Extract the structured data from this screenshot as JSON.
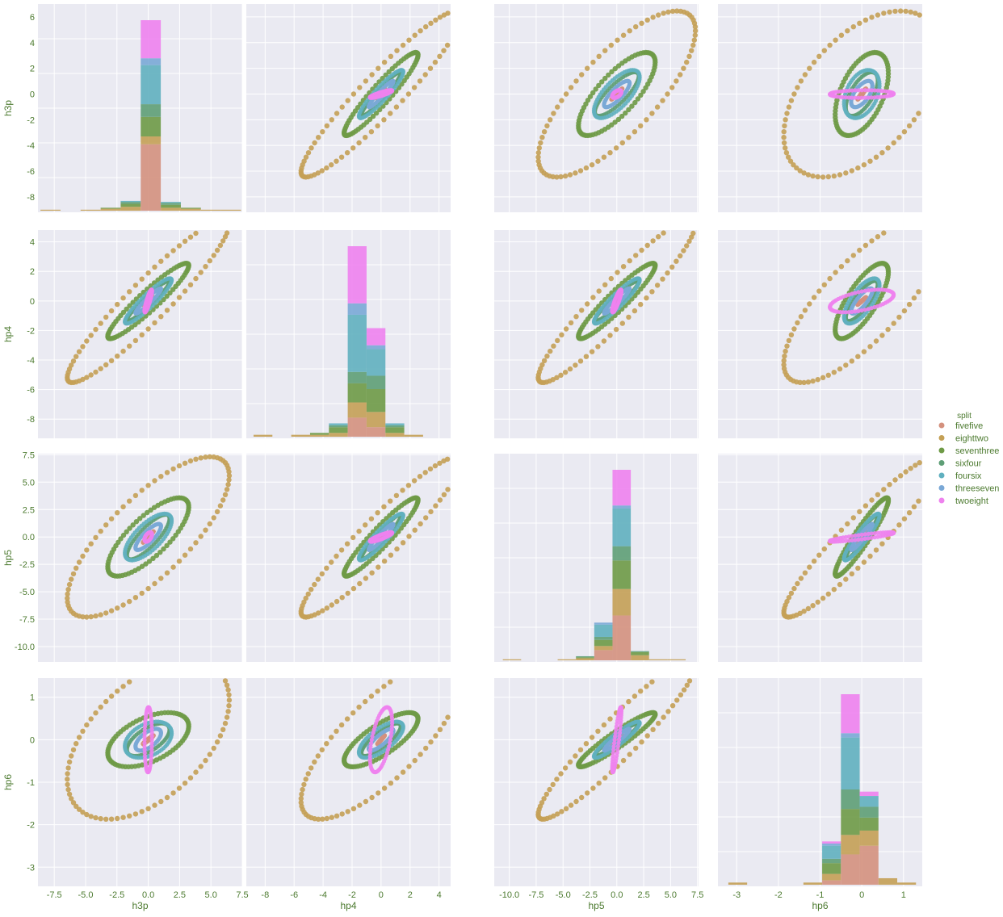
{
  "legend": {
    "title": "split",
    "entries": [
      "fivefive",
      "eighttwo",
      "seventhree",
      "sixfour",
      "foursix",
      "threeseven",
      "twoeight"
    ]
  },
  "colors": {
    "fivefive": "#d4917e",
    "eighttwo": "#c4a055",
    "seventhree": "#6e9a46",
    "sixfour": "#5e9e76",
    "foursix": "#60b0bf",
    "threeseven": "#7aa8d6",
    "twoeight": "#ee82ee",
    "panel_bg": "#eaeaf2",
    "grid": "#ffffff",
    "text": "#4c7a2f"
  },
  "chart_data": {
    "type": "scatter",
    "kind": "pairplot",
    "variables": [
      "h3p",
      "hp4",
      "hp5",
      "hp6"
    ],
    "diagonal": "stacked-histogram",
    "axes": {
      "h3p": {
        "label": "h3p",
        "lim": [
          -8.8,
          7.5
        ],
        "ticks": [
          "-7.5",
          "-5.0",
          "-2.5",
          "0.0",
          "2.5",
          "5.0",
          "7.5"
        ],
        "tick_values": [
          -7.5,
          -5,
          -2.5,
          0,
          2.5,
          5,
          7.5
        ]
      },
      "hp4": {
        "label": "hp4",
        "lim": [
          -9.3,
          4.8
        ],
        "ticks": [
          "-8",
          "-6",
          "-4",
          "-2",
          "0",
          "2",
          "4"
        ],
        "tick_values": [
          -8,
          -6,
          -4,
          -2,
          0,
          2,
          4
        ]
      },
      "hp5": {
        "label": "hp5",
        "lim": [
          -11.4,
          7.6
        ],
        "ticks": [
          "-10.0",
          "-7.5",
          "-5.0",
          "-2.5",
          "0.0",
          "2.5",
          "5.0",
          "7.5"
        ],
        "tick_values": [
          -10,
          -7.5,
          -5,
          -2.5,
          0,
          2.5,
          5,
          7.5
        ]
      },
      "hp6": {
        "label": "hp6",
        "lim": [
          -3.45,
          1.45
        ],
        "ticks": [
          "-3",
          "-2",
          "-1",
          "0",
          "1"
        ],
        "tick_values": [
          -3,
          -2,
          -1,
          0,
          1
        ]
      }
    },
    "row_ticks": {
      "h3p": {
        "lim": [
          -9.2,
          7.0
        ],
        "ticks": [
          "6",
          "4",
          "2",
          "0",
          "-2",
          "-4",
          "-6",
          "-8"
        ],
        "tick_values": [
          6,
          4,
          2,
          0,
          -2,
          -4,
          -6,
          -8
        ]
      },
      "hp4": {
        "lim": [
          -9.3,
          4.8
        ],
        "ticks": [
          "4",
          "2",
          "0",
          "-2",
          "-4",
          "-6",
          "-8"
        ],
        "tick_values": [
          4,
          2,
          0,
          -2,
          -4,
          -6,
          -8
        ]
      },
      "hp5": {
        "lim": [
          -11.4,
          7.6
        ],
        "ticks": [
          "7.5",
          "5.0",
          "2.5",
          "0.0",
          "-2.5",
          "-5.0",
          "-7.5",
          "-10.0"
        ],
        "tick_values": [
          7.5,
          5,
          2.5,
          0,
          -2.5,
          -5,
          -7.5,
          -10
        ]
      },
      "hp6": {
        "lim": [
          -3.45,
          1.45
        ],
        "ticks": [
          "1",
          "0",
          "-1",
          "-2",
          "-3"
        ],
        "tick_values": [
          1,
          0,
          -1,
          -2,
          -3
        ]
      }
    },
    "series": [
      {
        "name": "fivefive",
        "scale": [
          0.5,
          0.3,
          0.6,
          0.12
        ],
        "sep": 0.08,
        "angle": 0.9
      },
      {
        "name": "eighttwo",
        "scale": [
          7.6,
          6.5,
          8.6,
          2.2
        ],
        "sep": 0.35,
        "angle": 0.0
      },
      {
        "name": "seventhree",
        "scale": [
          3.8,
          3.0,
          4.2,
          0.75
        ],
        "sep": 0.35,
        "angle": 0.6
      },
      {
        "name": "sixfour",
        "scale": [
          2.0,
          1.6,
          2.4,
          0.45
        ],
        "sep": 0.3,
        "angle": 1.2
      },
      {
        "name": "foursix",
        "scale": [
          2.2,
          1.8,
          2.5,
          0.5
        ],
        "sep": 0.4,
        "angle": 1.8
      },
      {
        "name": "threeseven",
        "scale": [
          1.2,
          1.0,
          1.4,
          0.3
        ],
        "sep": 0.3,
        "angle": 2.4
      },
      {
        "name": "twoeight",
        "scale": [
          0.35,
          0.9,
          0.5,
          0.9
        ],
        "sep": 0.5,
        "angle": 3.0
      }
    ],
    "histograms": {
      "h3p": {
        "bins": [
          -8.6,
          -7.0,
          -5.4,
          -3.8,
          -2.2,
          -0.6,
          1.0,
          2.6,
          4.2,
          5.8,
          7.4
        ],
        "counts": {
          "fivefive": [
            0,
            0,
            0,
            0,
            0,
            68,
            0,
            0,
            0,
            0
          ],
          "eighttwo": [
            1,
            0,
            1,
            2,
            4,
            8,
            3,
            2,
            1,
            1
          ],
          "seventhree": [
            0,
            0,
            0,
            1,
            3,
            20,
            3,
            1,
            0,
            0
          ],
          "sixfour": [
            0,
            0,
            0,
            0,
            2,
            13,
            2,
            0,
            0,
            0
          ],
          "foursix": [
            0,
            0,
            0,
            0,
            1,
            40,
            1,
            0,
            0,
            0
          ],
          "threeseven": [
            0,
            0,
            0,
            0,
            0,
            7,
            0,
            0,
            0,
            0
          ],
          "twoeight": [
            0,
            0,
            0,
            0,
            0,
            39,
            0,
            0,
            0,
            0
          ]
        }
      },
      "hp4": {
        "bins": [
          -8.8,
          -7.5,
          -6.2,
          -4.9,
          -3.6,
          -2.3,
          -1.0,
          0.3,
          1.6,
          2.9,
          4.2
        ],
        "counts": {
          "fivefive": [
            0,
            0,
            0,
            0,
            0,
            10,
            5,
            0,
            0,
            0
          ],
          "eighttwo": [
            1,
            0,
            1,
            1,
            2,
            8,
            8,
            2,
            1,
            0
          ],
          "seventhree": [
            0,
            0,
            0,
            1,
            3,
            10,
            12,
            3,
            0,
            0
          ],
          "sixfour": [
            0,
            0,
            0,
            0,
            1,
            6,
            7,
            1,
            0,
            0
          ],
          "foursix": [
            0,
            0,
            0,
            0,
            1,
            30,
            14,
            1,
            0,
            0
          ],
          "threeseven": [
            0,
            0,
            0,
            0,
            0,
            6,
            2,
            0,
            0,
            0
          ],
          "twoeight": [
            0,
            0,
            0,
            0,
            0,
            30,
            9,
            0,
            0,
            0
          ]
        }
      },
      "hp5": {
        "bins": [
          -10.6,
          -8.9,
          -7.2,
          -5.5,
          -3.8,
          -2.1,
          -0.4,
          1.3,
          3.0,
          4.7,
          6.4
        ],
        "counts": {
          "fivefive": [
            0,
            0,
            0,
            0,
            0,
            10,
            44,
            0,
            0,
            0
          ],
          "eighttwo": [
            1,
            0,
            0,
            1,
            2,
            4,
            26,
            5,
            1,
            1
          ],
          "seventhree": [
            0,
            0,
            0,
            0,
            1,
            6,
            28,
            3,
            0,
            0
          ],
          "sixfour": [
            0,
            0,
            0,
            0,
            1,
            3,
            14,
            1,
            0,
            0
          ],
          "foursix": [
            0,
            0,
            0,
            0,
            0,
            12,
            37,
            0,
            0,
            0
          ],
          "threeseven": [
            0,
            0,
            0,
            0,
            0,
            2,
            3,
            0,
            0,
            0
          ],
          "twoeight": [
            0,
            0,
            0,
            0,
            0,
            0,
            35,
            0,
            0,
            0
          ]
        }
      },
      "hp6": {
        "bins": [
          -3.2,
          -2.75,
          -2.3,
          -1.85,
          -1.4,
          -0.95,
          -0.5,
          -0.05,
          0.4,
          0.85,
          1.3
        ],
        "counts": {
          "fivefive": [
            0,
            0,
            0,
            0,
            0,
            2,
            14,
            18,
            0,
            0
          ],
          "eighttwo": [
            1,
            0,
            0,
            0,
            1,
            3,
            9,
            7,
            3,
            1
          ],
          "seventhree": [
            0,
            0,
            0,
            0,
            0,
            5,
            12,
            6,
            0,
            0
          ],
          "sixfour": [
            0,
            0,
            0,
            0,
            0,
            2,
            9,
            5,
            0,
            0
          ],
          "foursix": [
            0,
            0,
            0,
            0,
            0,
            6,
            24,
            5,
            0,
            0
          ],
          "threeseven": [
            0,
            0,
            0,
            0,
            0,
            1,
            2,
            0,
            0,
            0
          ],
          "twoeight": [
            0,
            0,
            0,
            0,
            0,
            1,
            18,
            2,
            0,
            0
          ]
        }
      }
    }
  }
}
